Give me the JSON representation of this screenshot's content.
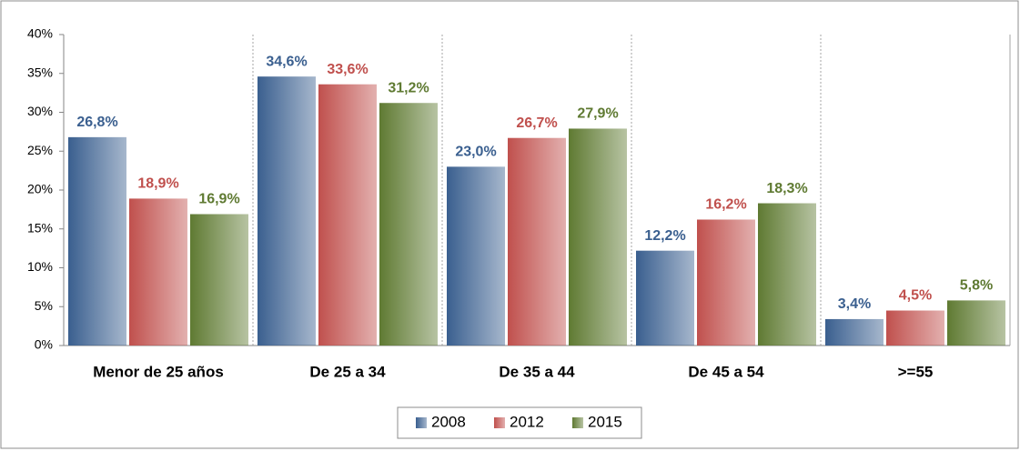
{
  "chart_data": {
    "type": "bar",
    "categories": [
      "Menor de 25 años",
      "De 25 a 34",
      "De 35 a 44",
      "De 45 a 54",
      ">=55"
    ],
    "series": [
      {
        "name": "2008",
        "color": "#3a5f8f",
        "values": [
          26.8,
          34.6,
          23.0,
          12.2,
          3.4
        ],
        "value_labels": [
          "26,8%",
          "34,6%",
          "23,0%",
          "12,2%",
          "3,4%"
        ]
      },
      {
        "name": "2012",
        "color": "#c0504d",
        "values": [
          18.9,
          33.6,
          26.7,
          16.2,
          4.5
        ],
        "value_labels": [
          "18,9%",
          "33,6%",
          "26,7%",
          "16,2%",
          "4,5%"
        ]
      },
      {
        "name": "2015",
        "color": "#5f7a32",
        "values": [
          16.9,
          31.2,
          27.9,
          18.3,
          5.8
        ],
        "value_labels": [
          "16,9%",
          "31,2%",
          "27,9%",
          "18,3%",
          "5,8%"
        ]
      }
    ],
    "ylim": [
      0,
      40
    ],
    "yticks": [
      {
        "value": 0,
        "label": "0%"
      },
      {
        "value": 5,
        "label": "5%"
      },
      {
        "value": 10,
        "label": "10%"
      },
      {
        "value": 15,
        "label": "15%"
      },
      {
        "value": 20,
        "label": "20%"
      },
      {
        "value": 25,
        "label": "25%"
      },
      {
        "value": 30,
        "label": "30%"
      },
      {
        "value": 35,
        "label": "35%"
      },
      {
        "value": 40,
        "label": "40%"
      }
    ],
    "legend": "bottom"
  }
}
